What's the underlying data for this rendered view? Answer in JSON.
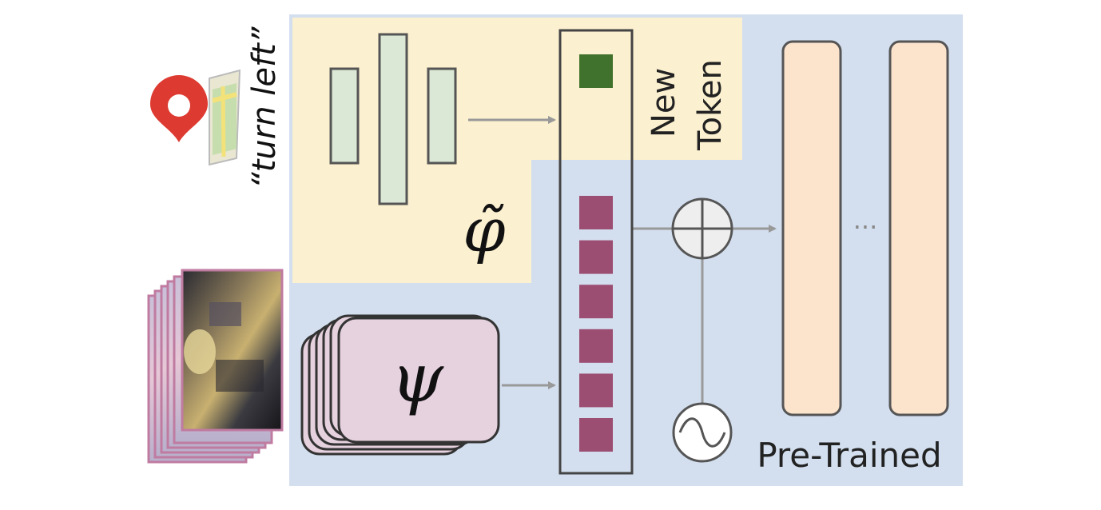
{
  "instruction": {
    "text": "“turn left”"
  },
  "new_token": {
    "line1": "New",
    "line2": "Token"
  },
  "pretrained": {
    "label": "Pre-Trained"
  },
  "ellipsis": {
    "text": "···"
  },
  "encoders": {
    "instruction_encoder_symbol": "φ̃",
    "observation_encoder_symbol": "ψ"
  },
  "token_column": {
    "new_token_count": 1,
    "observation_token_count": 6
  },
  "colors": {
    "pretrained_region": "#d3dfef",
    "new_region": "#fbf0cf",
    "encoder_bar": "#dbe8d5",
    "new_token": "#41722d",
    "obs_token": "#9c4e72",
    "psi_block": "#e6d1de",
    "transformer_layer": "#fbe3cc",
    "stroke": "#555555",
    "arrow": "#999999",
    "pin": "#dd3b31",
    "frame_border": "#c07ba1"
  },
  "icons": {
    "map_pin": "map-pin-icon",
    "map": "map-icon",
    "frames": "video-frames-icon",
    "add": "add-operator-icon",
    "positional": "sinusoid-icon"
  }
}
